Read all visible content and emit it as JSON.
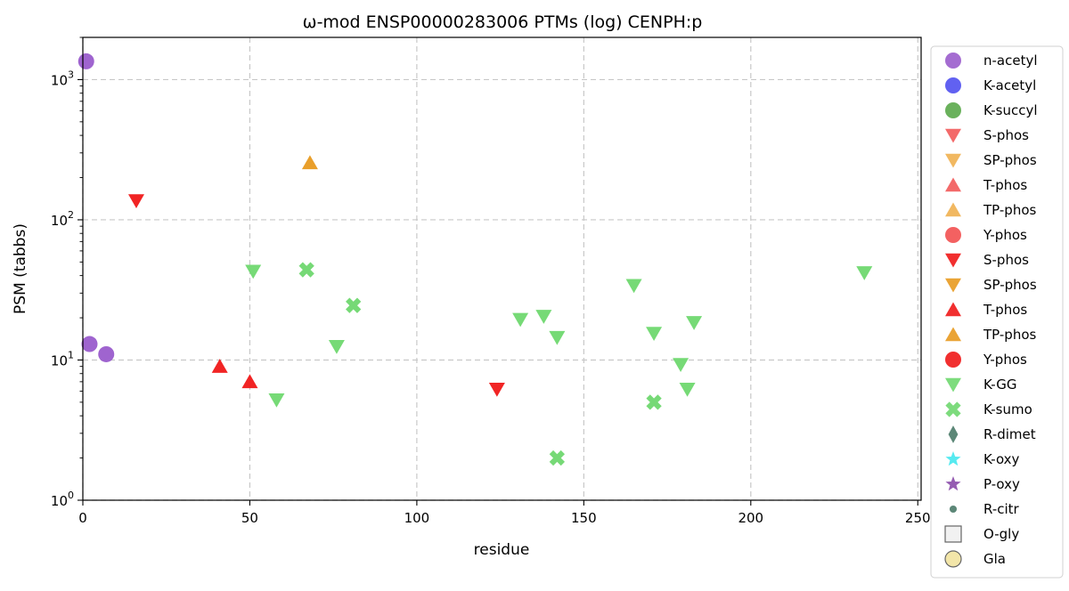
{
  "chart_data": {
    "type": "scatter",
    "title": "ω-mod ENSP00000283006 PTMs (log) CENPH:p",
    "xlabel": "residue",
    "ylabel": "PSM (tabbs)",
    "xlim": [
      0,
      251
    ],
    "ylim": [
      1,
      2000
    ],
    "yscale": "log",
    "grid": true,
    "legend_position": "right-outside",
    "x_ticks": [
      "0",
      "50",
      "100",
      "150",
      "200",
      "250"
    ],
    "y_ticks": [
      {
        "base": "10",
        "exp": "0"
      },
      {
        "base": "10",
        "exp": "1"
      },
      {
        "base": "10",
        "exp": "2"
      },
      {
        "base": "10",
        "exp": "3"
      }
    ],
    "series": [
      {
        "name": "n-acetyl",
        "marker": "circle",
        "color": "#9a5ccc",
        "points": [
          [
            1,
            1350
          ],
          [
            2,
            13
          ],
          [
            7,
            11
          ]
        ]
      },
      {
        "name": "K-acetyl",
        "marker": "circle",
        "color": "#5050f0",
        "points": []
      },
      {
        "name": "K-succyl",
        "marker": "circle",
        "color": "#5aa84a",
        "points": []
      },
      {
        "name": "S-phos",
        "marker": "triangle-down",
        "color": "#f25a5a",
        "points": []
      },
      {
        "name": "SP-phos",
        "marker": "triangle-down",
        "color": "#f0b050",
        "points": []
      },
      {
        "name": "T-phos",
        "marker": "triangle-up",
        "color": "#f25a5a",
        "points": []
      },
      {
        "name": "TP-phos",
        "marker": "triangle-up",
        "color": "#f0b050",
        "points": []
      },
      {
        "name": "Y-phos",
        "marker": "circle",
        "color": "#f25050",
        "points": []
      },
      {
        "name": "S-phos",
        "marker": "triangle-down",
        "color": "#f01818",
        "points": [
          [
            16,
            137
          ],
          [
            124,
            6.2
          ]
        ]
      },
      {
        "name": "SP-phos",
        "marker": "triangle-down",
        "color": "#e89a20",
        "points": []
      },
      {
        "name": "T-phos",
        "marker": "triangle-up",
        "color": "#f01818",
        "points": [
          [
            41,
            9
          ],
          [
            50,
            7
          ]
        ]
      },
      {
        "name": "TP-phos",
        "marker": "triangle-up",
        "color": "#e89a20",
        "points": [
          [
            68,
            255
          ]
        ]
      },
      {
        "name": "Y-phos",
        "marker": "circle",
        "color": "#f01818",
        "points": []
      },
      {
        "name": "K-GG",
        "marker": "triangle-down",
        "color": "#6fd86f",
        "points": [
          [
            51,
            43
          ],
          [
            58,
            5.2
          ],
          [
            76,
            12.5
          ],
          [
            131,
            19.5
          ],
          [
            138,
            20.5
          ],
          [
            142,
            14.5
          ],
          [
            165,
            34
          ],
          [
            171,
            15.5
          ],
          [
            179,
            9.3
          ],
          [
            181,
            6.2
          ],
          [
            183,
            18.5
          ],
          [
            234,
            42
          ]
        ]
      },
      {
        "name": "K-sumo",
        "marker": "x",
        "color": "#6fd86f",
        "points": [
          [
            67,
            44
          ],
          [
            81,
            24.5
          ],
          [
            142,
            2
          ],
          [
            171,
            5
          ]
        ]
      },
      {
        "name": "R-dimet",
        "marker": "diamond",
        "color": "#4a7a68",
        "points": []
      },
      {
        "name": "K-oxy",
        "marker": "star",
        "color": "#44e8ee",
        "points": []
      },
      {
        "name": "P-oxy",
        "marker": "star",
        "color": "#8a4aaa",
        "points": []
      },
      {
        "name": "R-citr",
        "marker": "small-circle",
        "color": "#4a7a68",
        "points": []
      },
      {
        "name": "O-gly",
        "marker": "square",
        "color": "#f0f0f0",
        "points": []
      },
      {
        "name": "Gla",
        "marker": "circle-outline",
        "color": "#f2e4a0",
        "points": []
      }
    ]
  }
}
